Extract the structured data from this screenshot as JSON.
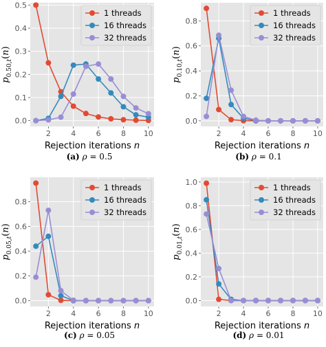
{
  "legend_labels": [
    "1 threads",
    "16 threads",
    "32 threads"
  ],
  "series_colors": [
    "#e24a33",
    "#348abd",
    "#988ed5"
  ],
  "chart_data": [
    {
      "type": "line",
      "xlabel": "Rejection iterations n",
      "ylabel": "p0.50,t(n)",
      "ylabel_sub": "0.50,",
      "caption_letter": "(a)",
      "caption_eq": "ρ = 0.5",
      "x": [
        1,
        2,
        3,
        4,
        5,
        6,
        7,
        8,
        9,
        10
      ],
      "xticks": [
        "2",
        "4",
        "6",
        "8",
        "10"
      ],
      "ylim": [
        -0.025,
        0.51
      ],
      "yticks": [
        "0.0",
        "0.1",
        "0.2",
        "0.3",
        "0.4",
        "0.5"
      ],
      "ytick_values": [
        0,
        0.1,
        0.2,
        0.3,
        0.4,
        0.5
      ],
      "legend_position": "top-right",
      "grid": true,
      "series": [
        {
          "name": "1 threads",
          "values": [
            0.5,
            0.25,
            0.125,
            0.0625,
            0.031,
            0.016,
            0.008,
            0.004,
            0.002,
            0.001
          ]
        },
        {
          "name": "16 threads",
          "values": [
            0.0,
            0.01,
            0.105,
            0.24,
            0.245,
            0.18,
            0.12,
            0.06,
            0.025,
            0.015
          ]
        },
        {
          "name": "32 threads",
          "values": [
            0.0,
            0.003,
            0.015,
            0.115,
            0.235,
            0.245,
            0.18,
            0.105,
            0.055,
            0.03
          ]
        }
      ]
    },
    {
      "type": "line",
      "xlabel": "Rejection iterations n",
      "ylabel": "p0.10,t(n)",
      "ylabel_sub": "0.10,",
      "caption_letter": "(b)",
      "caption_eq": "ρ = 0.1",
      "x": [
        1,
        2,
        3,
        4,
        5,
        6,
        7,
        8,
        9,
        10
      ],
      "xticks": [
        "2",
        "4",
        "6",
        "8",
        "10"
      ],
      "ylim": [
        -0.045,
        0.945
      ],
      "yticks": [
        "0.0",
        "0.2",
        "0.4",
        "0.6",
        "0.8"
      ],
      "ytick_values": [
        0,
        0.2,
        0.4,
        0.6,
        0.8
      ],
      "legend_position": "top-right",
      "grid": true,
      "series": [
        {
          "name": "1 threads",
          "values": [
            0.9,
            0.09,
            0.009,
            0.001,
            0.0,
            0.0,
            0.0,
            0.0,
            0.0,
            0.0
          ]
        },
        {
          "name": "16 threads",
          "values": [
            0.18,
            0.66,
            0.13,
            0.02,
            0.003,
            0.0,
            0.0,
            0.0,
            0.0,
            0.0
          ]
        },
        {
          "name": "32 threads",
          "values": [
            0.035,
            0.685,
            0.245,
            0.035,
            0.005,
            0.0,
            0.0,
            0.0,
            0.0,
            0.0
          ]
        }
      ]
    },
    {
      "type": "line",
      "xlabel": "Rejection iterations n",
      "ylabel": "p0.05,t(n)",
      "ylabel_sub": "0.05,",
      "caption_letter": "(c)",
      "caption_eq": "ρ = 0.05",
      "x": [
        1,
        2,
        3,
        4,
        5,
        6,
        7,
        8,
        9,
        10
      ],
      "xticks": [
        "2",
        "4",
        "6",
        "8",
        "10"
      ],
      "ylim": [
        -0.047,
        0.997
      ],
      "yticks": [
        "0.0",
        "0.2",
        "0.4",
        "0.6",
        "0.8"
      ],
      "ytick_values": [
        0,
        0.2,
        0.4,
        0.6,
        0.8
      ],
      "legend_position": "top-right",
      "grid": true,
      "series": [
        {
          "name": "1 threads",
          "values": [
            0.95,
            0.0475,
            0.0024,
            0.0001,
            0.0,
            0.0,
            0.0,
            0.0,
            0.0,
            0.0
          ]
        },
        {
          "name": "16 threads",
          "values": [
            0.44,
            0.52,
            0.04,
            0.0,
            0.0,
            0.0,
            0.0,
            0.0,
            0.0,
            0.0
          ]
        },
        {
          "name": "32 threads",
          "values": [
            0.19,
            0.73,
            0.08,
            0.003,
            0.0,
            0.0,
            0.0,
            0.0,
            0.0,
            0.0
          ]
        }
      ]
    },
    {
      "type": "line",
      "xlabel": "Rejection iterations n",
      "ylabel": "p0.01,t(n)",
      "ylabel_sub": "0.01,",
      "caption_letter": "(d)",
      "caption_eq": "ρ = 0.01",
      "x": [
        1,
        2,
        3,
        4,
        5,
        6,
        7,
        8,
        9,
        10
      ],
      "xticks": [
        "2",
        "4",
        "6",
        "8",
        "10"
      ],
      "ylim": [
        -0.05,
        1.04
      ],
      "yticks": [
        "0.0",
        "0.2",
        "0.4",
        "0.6",
        "0.8",
        "1.0"
      ],
      "ytick_values": [
        0,
        0.2,
        0.4,
        0.6,
        0.8,
        1.0
      ],
      "legend_position": "top-right",
      "grid": true,
      "series": [
        {
          "name": "1 threads",
          "values": [
            0.99,
            0.01,
            0.0001,
            0.0,
            0.0,
            0.0,
            0.0,
            0.0,
            0.0,
            0.0
          ]
        },
        {
          "name": "16 threads",
          "values": [
            0.85,
            0.14,
            0.01,
            0.0,
            0.0,
            0.0,
            0.0,
            0.0,
            0.0,
            0.0
          ]
        },
        {
          "name": "32 threads",
          "values": [
            0.73,
            0.27,
            0.0,
            0.0,
            0.0,
            0.0,
            0.0,
            0.0,
            0.0,
            0.0
          ]
        }
      ]
    }
  ]
}
